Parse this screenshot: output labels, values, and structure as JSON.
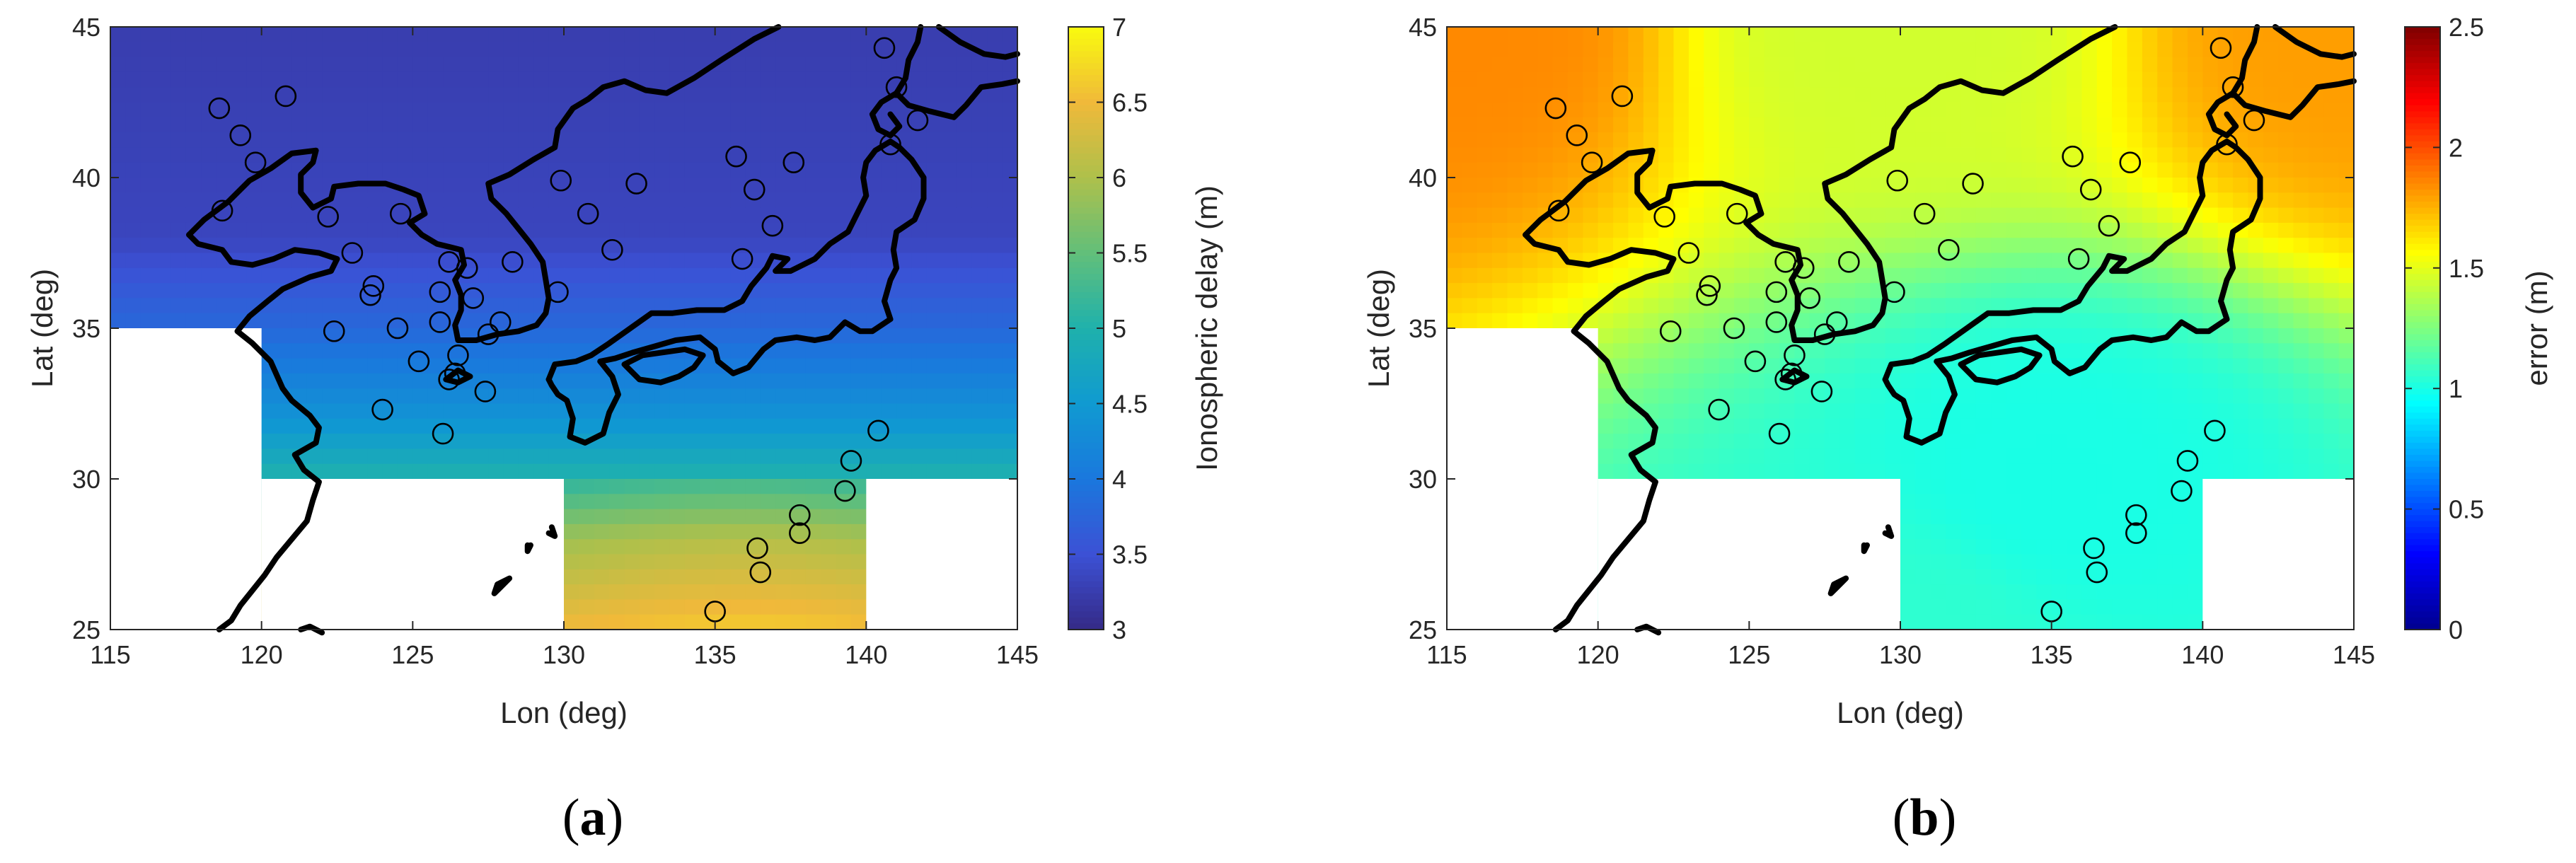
{
  "colormaps": {
    "parula": [
      "#352a87",
      "#3c51d5",
      "#1a78dd",
      "#109ad1",
      "#1fb1ac",
      "#62bf7a",
      "#aec04b",
      "#f0b93a",
      "#f9fb0e"
    ],
    "jet": [
      "#00008f",
      "#0000ff",
      "#007fff",
      "#00ffff",
      "#7fff7f",
      "#ffff00",
      "#ff7f00",
      "#ff0000",
      "#7f0000"
    ]
  },
  "chart_data": [
    {
      "type": "heatmap",
      "panel_label": "(a)",
      "panel_letter": "a",
      "xlabel": "Lon (deg)",
      "ylabel": "Lat (deg)",
      "colorbar_label": "Ionospheric delay (m)",
      "xlim": [
        115,
        145
      ],
      "ylim": [
        25,
        45
      ],
      "xticks": [
        115,
        120,
        125,
        130,
        135,
        140,
        145
      ],
      "yticks": [
        25,
        30,
        35,
        40,
        45
      ],
      "clim": [
        3,
        7
      ],
      "cticks": [
        3,
        3.5,
        4,
        4.5,
        5,
        5.5,
        6,
        6.5,
        7
      ],
      "colormap": "parula",
      "field": {
        "description_values_by_latitude": [
          {
            "lat": 45,
            "value": 3.25
          },
          {
            "lat": 38,
            "value": 3.35
          },
          {
            "lat": 35,
            "value": 3.8
          },
          {
            "lat": 32,
            "value": 4.4
          },
          {
            "lat": 30,
            "value": 5.0
          },
          {
            "lat": 28,
            "value": 5.8
          },
          {
            "lat": 25,
            "value": 6.4
          }
        ]
      }
    },
    {
      "type": "heatmap",
      "panel_label": "(b)",
      "panel_letter": "b",
      "xlabel": "Lon (deg)",
      "ylabel": "Lat (deg)",
      "colorbar_label": "error (m)",
      "xlim": [
        115,
        145
      ],
      "ylim": [
        25,
        45
      ],
      "xticks": [
        115,
        120,
        125,
        130,
        135,
        140,
        145
      ],
      "yticks": [
        25,
        30,
        35,
        40,
        45
      ],
      "clim": [
        0,
        2.5
      ],
      "cticks": [
        0,
        0.5,
        1,
        1.5,
        2,
        2.5
      ],
      "colormap": "jet",
      "field": {
        "corner_values": [
          {
            "lon": 115,
            "lat": 45,
            "value": 1.85
          },
          {
            "lon": 145,
            "lat": 45,
            "value": 1.8
          },
          {
            "lon": 130,
            "lat": 45,
            "value": 1.45
          },
          {
            "lon": 130,
            "lat": 25,
            "value": 1.05
          },
          {
            "lon": 135,
            "lat": 30,
            "value": 1.0
          }
        ]
      }
    }
  ],
  "stations": [
    [
      118.6,
      42.3
    ],
    [
      119.3,
      41.4
    ],
    [
      119.8,
      40.5
    ],
    [
      120.8,
      42.7
    ],
    [
      118.7,
      38.9
    ],
    [
      122.2,
      38.7
    ],
    [
      123,
      37.5
    ],
    [
      123.7,
      36.4
    ],
    [
      123.6,
      36.1
    ],
    [
      124.6,
      38.8
    ],
    [
      122.4,
      34.9
    ],
    [
      124.5,
      35
    ],
    [
      125.2,
      33.9
    ],
    [
      125.9,
      36.2
    ],
    [
      125.9,
      35.2
    ],
    [
      126.2,
      37.2
    ],
    [
      127,
      36
    ],
    [
      126.8,
      37
    ],
    [
      126.5,
      34.1
    ],
    [
      126.4,
      33.5
    ],
    [
      126.2,
      33.3
    ],
    [
      124,
      32.3
    ],
    [
      126,
      31.5
    ],
    [
      127.4,
      32.9
    ],
    [
      127.5,
      34.8
    ],
    [
      127.9,
      35.2
    ],
    [
      128.3,
      37.2
    ],
    [
      129.8,
      36.2
    ],
    [
      129.9,
      39.9
    ],
    [
      130.8,
      38.8
    ],
    [
      131.6,
      37.6
    ],
    [
      132.4,
      39.8
    ],
    [
      135.7,
      40.7
    ],
    [
      136.3,
      39.6
    ],
    [
      136.9,
      38.4
    ],
    [
      137.6,
      40.5
    ],
    [
      135.9,
      37.3
    ],
    [
      140.6,
      44.3
    ],
    [
      141,
      43
    ],
    [
      141.7,
      41.9
    ],
    [
      140.8,
      41.1
    ],
    [
      139.5,
      30.6
    ],
    [
      139.3,
      29.6
    ],
    [
      140.4,
      31.6
    ],
    [
      137.8,
      28.8
    ],
    [
      137.8,
      28.2
    ],
    [
      136.4,
      27.7
    ],
    [
      136.5,
      26.9
    ],
    [
      135,
      25.6
    ]
  ]
}
